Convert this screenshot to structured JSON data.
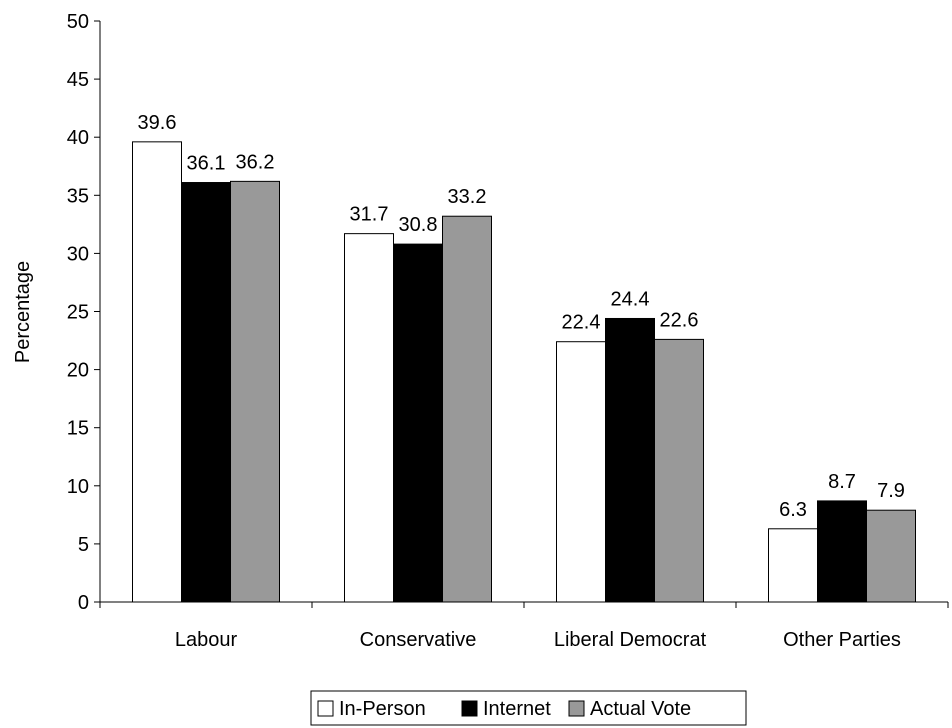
{
  "chart_data": {
    "type": "bar",
    "title": "",
    "xlabel": "",
    "ylabel": "Percentage",
    "ylim": [
      0,
      50
    ],
    "yticks": [
      0,
      5,
      10,
      15,
      20,
      25,
      30,
      35,
      40,
      45,
      50
    ],
    "grid": false,
    "legend_position": "bottom",
    "categories": [
      "Labour",
      "Conservative",
      "Liberal Democrat",
      "Other Parties"
    ],
    "series": [
      {
        "name": "In-Person",
        "color": "#ffffff",
        "values": [
          39.6,
          31.7,
          22.4,
          6.3
        ]
      },
      {
        "name": "Internet",
        "color": "#000000",
        "values": [
          36.1,
          30.8,
          24.4,
          8.7
        ]
      },
      {
        "name": "Actual Vote",
        "color": "#999999",
        "values": [
          36.2,
          33.2,
          22.6,
          7.9
        ]
      }
    ]
  }
}
